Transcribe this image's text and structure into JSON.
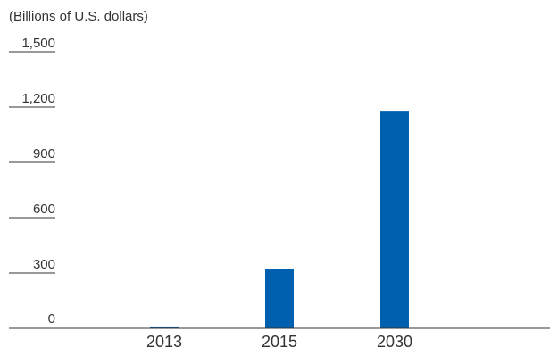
{
  "chart_data": {
    "type": "bar",
    "title": "",
    "unit_label": "(Billions of U.S. dollars)",
    "xlabel": "",
    "ylabel": "",
    "categories": [
      "2013",
      "2015",
      "2030"
    ],
    "values": [
      10,
      320,
      1180
    ],
    "ylim": [
      0,
      1500
    ],
    "yticks": [
      0,
      300,
      600,
      900,
      1200,
      1500
    ],
    "ytick_labels": [
      "0",
      "300",
      "600",
      "900",
      "1,200",
      "1,500"
    ],
    "grid": false,
    "legend": "none",
    "bar_color": "#0060B0",
    "axis_color": "#333333"
  }
}
